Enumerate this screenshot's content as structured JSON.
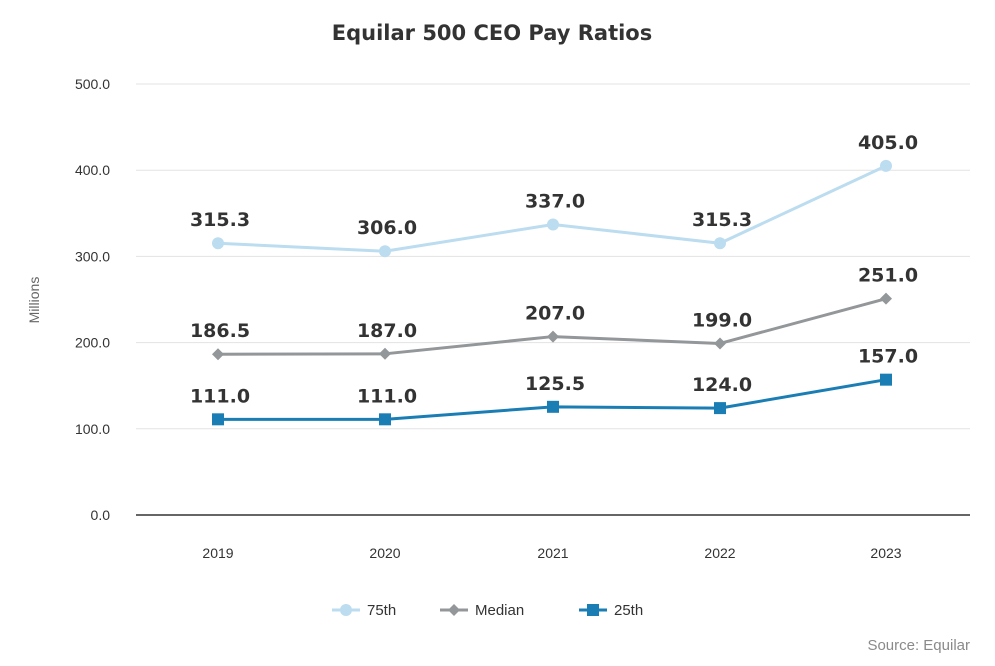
{
  "chart_data": {
    "type": "line",
    "title": "Equilar 500 CEO Pay Ratios",
    "ylabel": "Millions",
    "xlabel": "",
    "categories": [
      "2019",
      "2020",
      "2021",
      "2022",
      "2023"
    ],
    "ylim": [
      0,
      500
    ],
    "yticks": [
      "0.0",
      "100.0",
      "200.0",
      "300.0",
      "400.0",
      "500.0"
    ],
    "grid": true,
    "legend": "bottom",
    "series": [
      {
        "name": "75th",
        "marker": "circle",
        "color": "#bcdcf0",
        "values": [
          315.3,
          306.0,
          337.0,
          315.3,
          405.0
        ],
        "labels": [
          "315.3",
          "306.0",
          "337.0",
          "315.3",
          "405.0"
        ]
      },
      {
        "name": "Median",
        "marker": "diamond",
        "color": "#939799",
        "values": [
          186.5,
          187.0,
          207.0,
          199.0,
          251.0
        ],
        "labels": [
          "186.5",
          "187.0",
          "207.0",
          "199.0",
          "251.0"
        ]
      },
      {
        "name": "25th",
        "marker": "square",
        "color": "#1a7eb5",
        "values": [
          111.0,
          111.0,
          125.5,
          124.0,
          157.0
        ],
        "labels": [
          "111.0",
          "111.0",
          "125.5",
          "124.0",
          "157.0"
        ]
      }
    ]
  },
  "source": "Source: Equilar"
}
